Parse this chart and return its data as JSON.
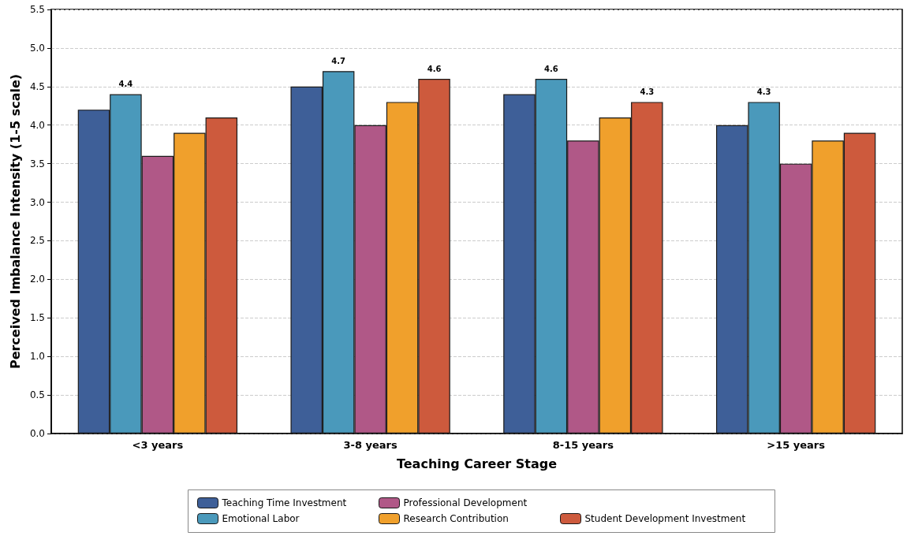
{
  "chart_data": {
    "type": "bar",
    "xlabel": "Teaching Career Stage",
    "ylabel": "Perceived Imbalance Intensity (1-5 scale)",
    "categories": [
      "<3 years",
      "3-8 years",
      "8-15 years",
      ">15 years"
    ],
    "series": [
      {
        "name": "Teaching Time Investment",
        "color": "#3e5f98",
        "values": [
          4.2,
          4.5,
          4.4,
          4.0
        ]
      },
      {
        "name": "Emotional Labor",
        "color": "#4a99bb",
        "values": [
          4.4,
          4.7,
          4.6,
          4.3
        ],
        "value_labels": [
          "4.4",
          "4.7",
          "4.6",
          "4.3"
        ]
      },
      {
        "name": "Professional Development",
        "color": "#b05887",
        "values": [
          3.6,
          4.0,
          3.8,
          3.5
        ]
      },
      {
        "name": "Research Contribution",
        "color": "#f0a02c",
        "values": [
          3.9,
          4.3,
          4.1,
          3.8
        ]
      },
      {
        "name": "Student Development Investment",
        "color": "#cd5a3d",
        "values": [
          4.1,
          4.6,
          4.3,
          3.9
        ],
        "value_labels": [
          null,
          "4.6",
          "4.3",
          null
        ]
      }
    ],
    "ylim": [
      0,
      5.5
    ],
    "yticks": [
      {
        "value": 0,
        "label": "0.0"
      },
      0.5,
      {
        "value": 1,
        "label": "1.0"
      },
      1.5,
      {
        "value": 2,
        "label": "2.0"
      },
      2.5,
      {
        "value": 3,
        "label": "3.0"
      },
      3.5,
      {
        "value": 4,
        "label": "4.0"
      },
      4.5,
      {
        "value": 5,
        "label": "5.0"
      },
      5.5
    ],
    "grid": "y",
    "legend": "bottom"
  }
}
